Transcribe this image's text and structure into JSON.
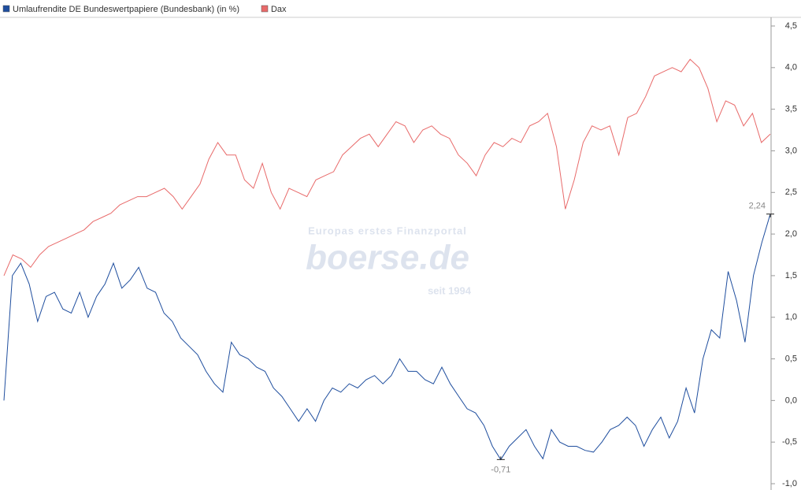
{
  "chart_data": {
    "type": "line",
    "watermark": {
      "tagline": "Europas erstes Finanzportal",
      "logo": "boerse.de",
      "since": "seit 1994"
    },
    "series": [
      {
        "name": "Umlaufrendite DE Bundeswertpapiere (Bundesbank) (in %)",
        "color": "#1f4e9e",
        "values": [
          0.0,
          1.5,
          1.65,
          1.4,
          0.95,
          1.25,
          1.3,
          1.1,
          1.05,
          1.3,
          1.0,
          1.25,
          1.4,
          1.65,
          1.35,
          1.45,
          1.6,
          1.35,
          1.3,
          1.05,
          0.95,
          0.75,
          0.65,
          0.55,
          0.35,
          0.2,
          0.1,
          0.7,
          0.55,
          0.5,
          0.4,
          0.35,
          0.15,
          0.05,
          -0.1,
          -0.25,
          -0.1,
          -0.25,
          0.0,
          0.15,
          0.1,
          0.2,
          0.15,
          0.25,
          0.3,
          0.2,
          0.3,
          0.5,
          0.35,
          0.35,
          0.25,
          0.2,
          0.4,
          0.2,
          0.05,
          -0.1,
          -0.15,
          -0.3,
          -0.55,
          -0.71,
          -0.55,
          -0.45,
          -0.35,
          -0.55,
          -0.7,
          -0.35,
          -0.5,
          -0.55,
          -0.55,
          -0.6,
          -0.62,
          -0.5,
          -0.35,
          -0.3,
          -0.2,
          -0.3,
          -0.55,
          -0.35,
          -0.2,
          -0.45,
          -0.25,
          0.15,
          -0.15,
          0.5,
          0.85,
          0.75,
          1.55,
          1.2,
          0.7,
          1.5,
          1.9,
          2.24
        ]
      },
      {
        "name": "Dax",
        "color": "#e86a6a",
        "values": [
          1.5,
          1.75,
          1.7,
          1.6,
          1.75,
          1.85,
          1.9,
          1.95,
          2.0,
          2.05,
          2.15,
          2.2,
          2.25,
          2.35,
          2.4,
          2.45,
          2.45,
          2.5,
          2.55,
          2.45,
          2.3,
          2.45,
          2.6,
          2.9,
          3.1,
          2.95,
          2.95,
          2.65,
          2.55,
          2.85,
          2.5,
          2.3,
          2.55,
          2.5,
          2.45,
          2.65,
          2.7,
          2.75,
          2.95,
          3.05,
          3.15,
          3.2,
          3.05,
          3.2,
          3.35,
          3.3,
          3.1,
          3.25,
          3.3,
          3.2,
          3.15,
          2.95,
          2.85,
          2.7,
          2.95,
          3.1,
          3.05,
          3.15,
          3.1,
          3.3,
          3.35,
          3.45,
          3.05,
          2.3,
          2.65,
          3.1,
          3.3,
          3.25,
          3.3,
          2.95,
          3.4,
          3.45,
          3.65,
          3.9,
          3.95,
          4.0,
          3.95,
          4.1,
          4.0,
          3.75,
          3.35,
          3.6,
          3.55,
          3.3,
          3.45,
          3.1,
          3.2
        ]
      }
    ],
    "annotations": [
      {
        "value": 2.24,
        "label": "2,24"
      },
      {
        "value": -0.71,
        "label": "-0,71"
      }
    ],
    "ylim": [
      -1.0,
      4.5
    ],
    "yticks": [
      {
        "value": -1.0,
        "label": "-1,0"
      },
      {
        "value": -0.5,
        "label": "-0,5"
      },
      {
        "value": 0.0,
        "label": "0,0"
      },
      {
        "value": 0.5,
        "label": "0,5"
      },
      {
        "value": 1.0,
        "label": "1,0"
      },
      {
        "value": 1.5,
        "label": "1,5"
      },
      {
        "value": 2.0,
        "label": "2,0"
      },
      {
        "value": 2.5,
        "label": "2,5"
      },
      {
        "value": 3.0,
        "label": "3,0"
      },
      {
        "value": 3.5,
        "label": "3,5"
      },
      {
        "value": 4.0,
        "label": "4,0"
      },
      {
        "value": 4.5,
        "label": "4,5"
      }
    ],
    "grid": false
  }
}
